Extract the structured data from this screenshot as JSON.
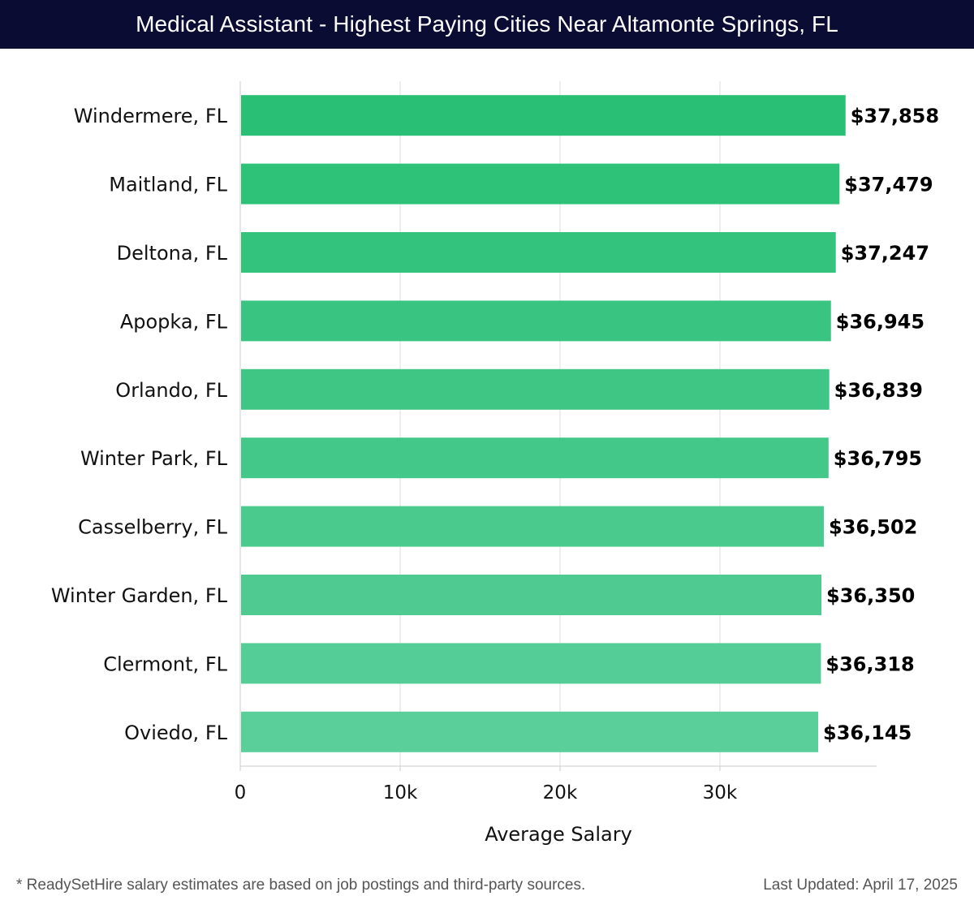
{
  "title": "Medical Assistant - Highest Paying Cities Near Altamonte Springs, FL",
  "footer": {
    "note": "* ReadySetHire salary estimates are based on job postings and third-party sources.",
    "updated": "Last Updated: April 17, 2025"
  },
  "colors": {
    "header_bg": "#0b0c33",
    "bar_top": "#29bf74",
    "bar_bottom": "#5acf9a",
    "grid": "#dddddd"
  },
  "chart_data": {
    "type": "bar",
    "orientation": "horizontal",
    "categories": [
      "Windermere, FL",
      "Maitland, FL",
      "Deltona, FL",
      "Apopka, FL",
      "Orlando, FL",
      "Winter Park, FL",
      "Casselberry, FL",
      "Winter Garden, FL",
      "Clermont, FL",
      "Oviedo, FL"
    ],
    "values": [
      37858,
      37479,
      37247,
      36945,
      36839,
      36795,
      36502,
      36350,
      36318,
      36145
    ],
    "value_labels": [
      "$37,858",
      "$37,479",
      "$37,247",
      "$36,945",
      "$36,839",
      "$36,795",
      "$36,502",
      "$36,350",
      "$36,318",
      "$36,145"
    ],
    "xlabel": "Average Salary",
    "ylabel": "",
    "xlim": [
      0,
      39800
    ],
    "xticks": [
      0,
      10000,
      20000,
      30000
    ],
    "xtick_labels": [
      "0",
      "10k",
      "20k",
      "30k"
    ],
    "grid": true
  }
}
